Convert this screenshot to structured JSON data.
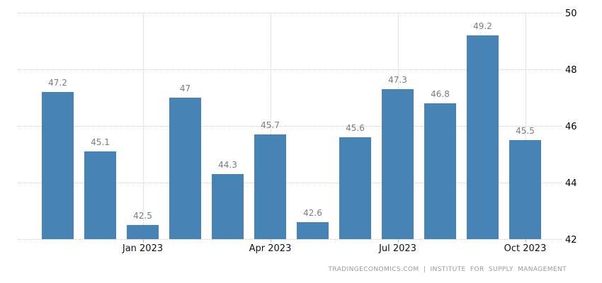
{
  "chart_data": {
    "type": "bar",
    "title": "",
    "xlabel": "",
    "ylabel": "",
    "values": [
      47.2,
      45.1,
      42.5,
      47,
      44.3,
      45.7,
      42.6,
      45.6,
      47.3,
      46.8,
      49.2,
      45.5
    ],
    "value_labels": [
      "47.2",
      "45.1",
      "42.5",
      "47",
      "44.3",
      "45.7",
      "42.6",
      "45.6",
      "47.3",
      "46.8",
      "49.2",
      "45.5"
    ],
    "x_ticks": [
      {
        "label": "Jan 2023",
        "bar_index": 2
      },
      {
        "label": "Apr 2023",
        "bar_index": 5
      },
      {
        "label": "Jul 2023",
        "bar_index": 8
      },
      {
        "label": "Oct 2023",
        "bar_index": 11
      }
    ],
    "y_ticks": [
      50,
      48,
      46,
      44,
      42
    ],
    "ylim": [
      42,
      50
    ],
    "grid": "dotted",
    "legend_position": "none",
    "bar_color": "#4783b4",
    "value_label_color": "#7b7b7b",
    "gridline_color": "#d0d0d0",
    "axis_label_color": "#000000"
  },
  "footer": {
    "attribution": "TRADINGECONOMICS.COM | INSTITUTE FOR SUPPLY MANAGEMENT"
  }
}
